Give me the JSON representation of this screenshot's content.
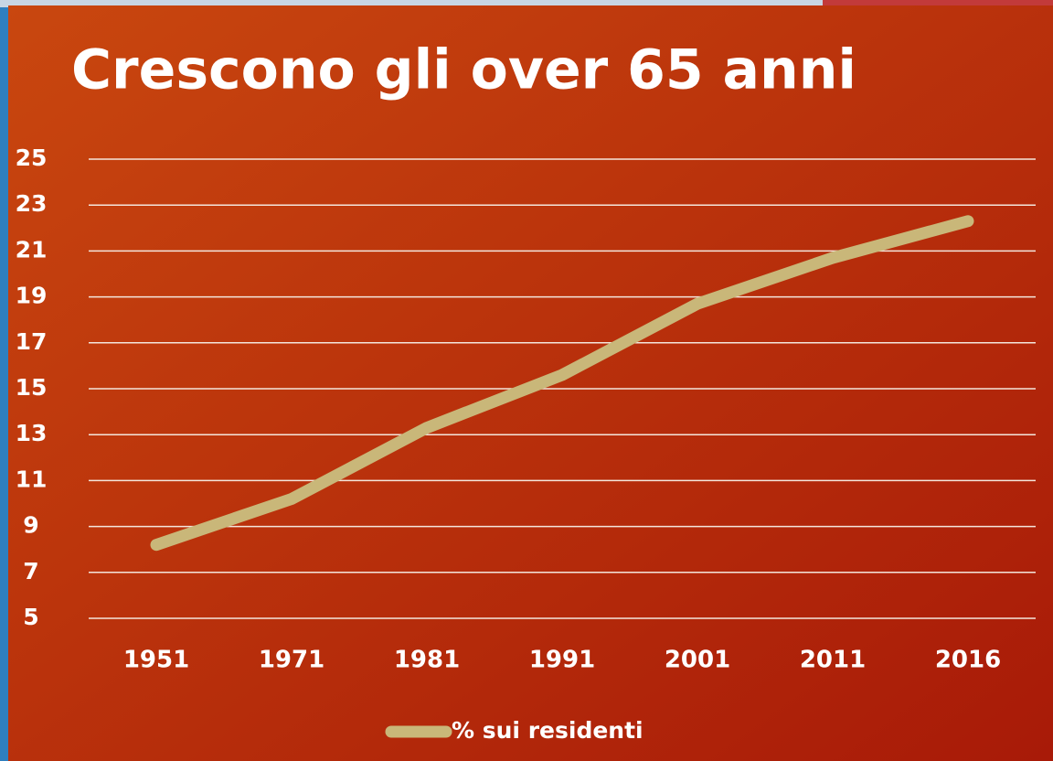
{
  "chart_data": {
    "type": "line",
    "title": "Crescono gli over 65 anni",
    "categories": [
      "1951",
      "1971",
      "1981",
      "1991",
      "2001",
      "2011",
      "2016"
    ],
    "series": [
      {
        "name": "% sui residenti",
        "color": "#c9b779",
        "values": [
          8.2,
          10.2,
          13.3,
          15.6,
          18.7,
          20.7,
          22.3
        ]
      }
    ],
    "ylim": [
      5,
      25
    ],
    "yticks": [
      5,
      7,
      9,
      11,
      13,
      15,
      17,
      19,
      21,
      23,
      25
    ],
    "grid": true,
    "legend": "bottom"
  }
}
